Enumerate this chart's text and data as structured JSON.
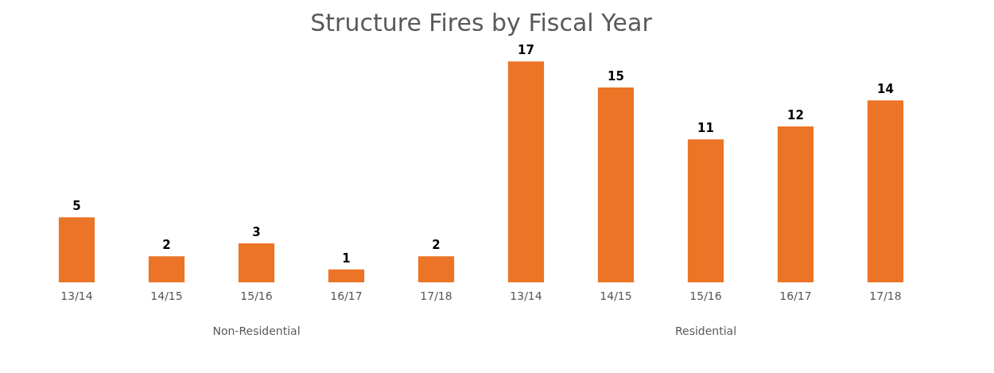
{
  "chart_data": {
    "type": "bar",
    "title": "Structure Fires by Fiscal Year",
    "categories": [
      "13/14",
      "14/15",
      "15/16",
      "16/17",
      "17/18",
      "13/14",
      "14/15",
      "15/16",
      "16/17",
      "17/18"
    ],
    "values": [
      5,
      2,
      3,
      1,
      2,
      17,
      15,
      11,
      12,
      14
    ],
    "color": "#ec7426",
    "data_labels": true,
    "annotations": [
      "Non-Residential",
      "Residential"
    ]
  }
}
